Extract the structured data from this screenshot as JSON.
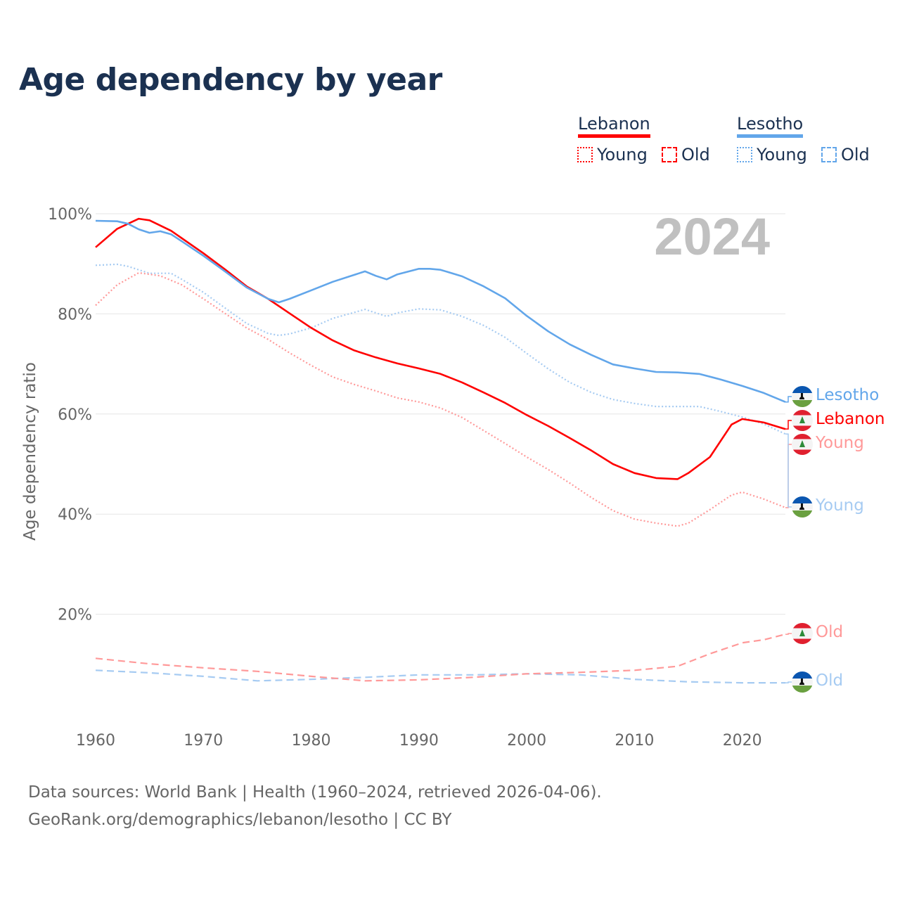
{
  "title": "Age dependency by year",
  "legend": {
    "countries": [
      {
        "name": "Lebanon",
        "color": "#ff0000",
        "items": [
          "Young",
          "Old"
        ]
      },
      {
        "name": "Lesotho",
        "color": "#62a6ea",
        "items": [
          "Young",
          "Old"
        ]
      }
    ]
  },
  "year_watermark": "2024",
  "footer": {
    "line1": "Data sources: World Bank | Health (1960–2024, retrieved 2026-04-06).",
    "line2": "GeoRank.org/demographics/lebanon/lesotho | CC BY"
  },
  "chart_data": {
    "type": "line",
    "title": "Age dependency by year",
    "xlabel": "",
    "ylabel": "Age dependency ratio",
    "xlim": [
      1960,
      2024
    ],
    "ylim": [
      0,
      100
    ],
    "x_ticks": [
      "1960",
      "1970",
      "1980",
      "1990",
      "2000",
      "2010",
      "2020"
    ],
    "y_ticks": [
      "20%",
      "40%",
      "60%",
      "80%",
      "100%"
    ],
    "grid": true,
    "legend_position": "top-right",
    "series": [
      {
        "name": "Lebanon",
        "end_label": "Lebanon",
        "country": "lebanon",
        "style": "solid",
        "color": "#ff0000",
        "points": [
          [
            1960,
            93.3
          ],
          [
            1962,
            97.0
          ],
          [
            1964,
            99.0
          ],
          [
            1965,
            98.7
          ],
          [
            1967,
            96.6
          ],
          [
            1970,
            92.1
          ],
          [
            1972,
            88.9
          ],
          [
            1974,
            85.5
          ],
          [
            1976,
            83.0
          ],
          [
            1978,
            80.1
          ],
          [
            1980,
            77.2
          ],
          [
            1982,
            74.7
          ],
          [
            1984,
            72.7
          ],
          [
            1986,
            71.3
          ],
          [
            1988,
            70.1
          ],
          [
            1990,
            69.1
          ],
          [
            1992,
            68.0
          ],
          [
            1994,
            66.3
          ],
          [
            1996,
            64.3
          ],
          [
            1998,
            62.2
          ],
          [
            2000,
            59.8
          ],
          [
            2002,
            57.6
          ],
          [
            2004,
            55.2
          ],
          [
            2006,
            52.7
          ],
          [
            2008,
            50.0
          ],
          [
            2010,
            48.2
          ],
          [
            2012,
            47.2
          ],
          [
            2014,
            47.0
          ],
          [
            2015,
            48.2
          ],
          [
            2017,
            51.4
          ],
          [
            2019,
            57.9
          ],
          [
            2020,
            59.0
          ],
          [
            2022,
            58.3
          ],
          [
            2024,
            57.0
          ]
        ]
      },
      {
        "name": "Lesotho",
        "end_label": "Lesotho",
        "country": "lesotho",
        "style": "solid",
        "color": "#62a6ea",
        "points": [
          [
            1960,
            98.6
          ],
          [
            1962,
            98.5
          ],
          [
            1963,
            98.0
          ],
          [
            1964,
            96.9
          ],
          [
            1965,
            96.2
          ],
          [
            1966,
            96.5
          ],
          [
            1967,
            95.9
          ],
          [
            1968,
            94.5
          ],
          [
            1970,
            91.6
          ],
          [
            1972,
            88.5
          ],
          [
            1974,
            85.3
          ],
          [
            1976,
            83.0
          ],
          [
            1977,
            82.3
          ],
          [
            1978,
            83.0
          ],
          [
            1980,
            84.7
          ],
          [
            1982,
            86.4
          ],
          [
            1984,
            87.8
          ],
          [
            1985,
            88.5
          ],
          [
            1986,
            87.6
          ],
          [
            1987,
            86.9
          ],
          [
            1988,
            87.9
          ],
          [
            1990,
            89.0
          ],
          [
            1991,
            89.0
          ],
          [
            1992,
            88.8
          ],
          [
            1994,
            87.5
          ],
          [
            1996,
            85.5
          ],
          [
            1998,
            83.1
          ],
          [
            2000,
            79.6
          ],
          [
            2002,
            76.5
          ],
          [
            2004,
            73.9
          ],
          [
            2006,
            71.8
          ],
          [
            2008,
            69.9
          ],
          [
            2010,
            69.1
          ],
          [
            2012,
            68.4
          ],
          [
            2014,
            68.3
          ],
          [
            2016,
            68.0
          ],
          [
            2018,
            66.9
          ],
          [
            2020,
            65.6
          ],
          [
            2022,
            64.2
          ],
          [
            2024,
            62.4
          ]
        ]
      },
      {
        "name": "Lebanon Young",
        "end_label": "Young",
        "country": "lebanon",
        "style": "dotted",
        "color": "#ff9999",
        "points": [
          [
            1960,
            81.7
          ],
          [
            1962,
            85.8
          ],
          [
            1964,
            88.2
          ],
          [
            1966,
            87.6
          ],
          [
            1968,
            85.8
          ],
          [
            1970,
            83.0
          ],
          [
            1972,
            80.1
          ],
          [
            1974,
            77.2
          ],
          [
            1976,
            74.9
          ],
          [
            1978,
            72.2
          ],
          [
            1980,
            69.7
          ],
          [
            1982,
            67.4
          ],
          [
            1984,
            65.9
          ],
          [
            1986,
            64.6
          ],
          [
            1988,
            63.2
          ],
          [
            1990,
            62.4
          ],
          [
            1992,
            61.2
          ],
          [
            1994,
            59.3
          ],
          [
            1996,
            56.7
          ],
          [
            1998,
            54.1
          ],
          [
            2000,
            51.4
          ],
          [
            2002,
            48.9
          ],
          [
            2004,
            46.2
          ],
          [
            2006,
            43.3
          ],
          [
            2008,
            40.7
          ],
          [
            2010,
            39.0
          ],
          [
            2012,
            38.2
          ],
          [
            2014,
            37.6
          ],
          [
            2015,
            38.2
          ],
          [
            2017,
            40.9
          ],
          [
            2019,
            43.8
          ],
          [
            2020,
            44.4
          ],
          [
            2022,
            43.0
          ],
          [
            2024,
            41.3
          ]
        ]
      },
      {
        "name": "Lesotho Young",
        "end_label": "Young",
        "country": "lesotho",
        "style": "dotted",
        "color": "#a6cbf2",
        "points": [
          [
            1960,
            89.7
          ],
          [
            1962,
            89.9
          ],
          [
            1963,
            89.5
          ],
          [
            1965,
            88.1
          ],
          [
            1967,
            88.1
          ],
          [
            1968,
            86.9
          ],
          [
            1970,
            84.3
          ],
          [
            1972,
            81.2
          ],
          [
            1974,
            78.1
          ],
          [
            1976,
            76.1
          ],
          [
            1977,
            75.7
          ],
          [
            1978,
            76.0
          ],
          [
            1980,
            77.2
          ],
          [
            1982,
            79.1
          ],
          [
            1984,
            80.3
          ],
          [
            1985,
            80.9
          ],
          [
            1987,
            79.5
          ],
          [
            1988,
            80.2
          ],
          [
            1990,
            81.0
          ],
          [
            1992,
            80.8
          ],
          [
            1994,
            79.5
          ],
          [
            1996,
            77.7
          ],
          [
            1998,
            75.3
          ],
          [
            2000,
            72.1
          ],
          [
            2002,
            69.0
          ],
          [
            2004,
            66.3
          ],
          [
            2006,
            64.3
          ],
          [
            2008,
            62.9
          ],
          [
            2010,
            62.1
          ],
          [
            2012,
            61.5
          ],
          [
            2014,
            61.5
          ],
          [
            2016,
            61.5
          ],
          [
            2018,
            60.5
          ],
          [
            2020,
            59.4
          ],
          [
            2022,
            58.0
          ],
          [
            2024,
            56.0
          ]
        ]
      },
      {
        "name": "Lebanon Old",
        "end_label": "Old",
        "country": "lebanon",
        "style": "dashed",
        "color": "#ff9999",
        "points": [
          [
            1960,
            11.2
          ],
          [
            1965,
            10.1
          ],
          [
            1970,
            9.3
          ],
          [
            1975,
            8.6
          ],
          [
            1980,
            7.6
          ],
          [
            1985,
            6.7
          ],
          [
            1990,
            6.9
          ],
          [
            1995,
            7.4
          ],
          [
            2000,
            8.1
          ],
          [
            2005,
            8.4
          ],
          [
            2010,
            8.8
          ],
          [
            2014,
            9.6
          ],
          [
            2017,
            12.1
          ],
          [
            2020,
            14.3
          ],
          [
            2022,
            14.9
          ],
          [
            2024,
            16.0
          ]
        ]
      },
      {
        "name": "Lesotho Old",
        "end_label": "Old",
        "country": "lesotho",
        "style": "dashed",
        "color": "#a6cbf2",
        "points": [
          [
            1960,
            8.8
          ],
          [
            1965,
            8.3
          ],
          [
            1970,
            7.6
          ],
          [
            1975,
            6.7
          ],
          [
            1980,
            7.0
          ],
          [
            1985,
            7.4
          ],
          [
            1990,
            7.9
          ],
          [
            1995,
            7.9
          ],
          [
            2000,
            8.1
          ],
          [
            2005,
            7.9
          ],
          [
            2010,
            7.0
          ],
          [
            2015,
            6.5
          ],
          [
            2020,
            6.3
          ],
          [
            2024,
            6.3
          ]
        ]
      }
    ]
  }
}
